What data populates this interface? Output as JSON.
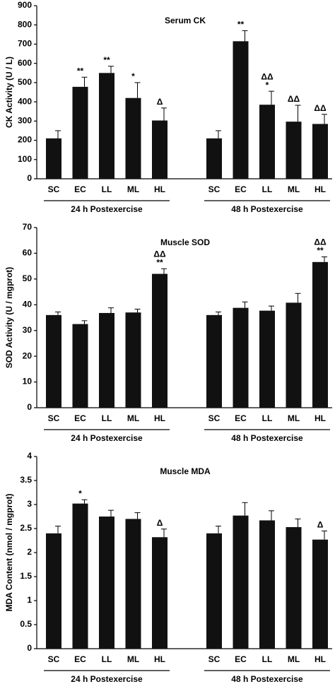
{
  "chart_data": [
    {
      "type": "bar",
      "title": "Serum CK",
      "ylabel": "CK Activity (U / L)",
      "categories": [
        "SC",
        "EC",
        "LL",
        "ML",
        "HL",
        "SC",
        "EC",
        "LL",
        "ML",
        "HL"
      ],
      "values": [
        210,
        478,
        550,
        420,
        303,
        210,
        715,
        385,
        297,
        285
      ],
      "errors": [
        40,
        50,
        35,
        80,
        65,
        40,
        55,
        70,
        85,
        50
      ],
      "annotations": [
        null,
        [
          "**"
        ],
        [
          "**"
        ],
        [
          "*"
        ],
        [
          "Δ"
        ],
        null,
        [
          "**"
        ],
        [
          "ΔΔ",
          "*"
        ],
        [
          "ΔΔ"
        ],
        [
          "ΔΔ"
        ]
      ],
      "groups": [
        "24 h Postexercise",
        "48 h Postexercise"
      ],
      "color": "#111111",
      "ylim": [
        0,
        900
      ],
      "yticks": [
        0,
        100,
        200,
        300,
        400,
        500,
        600,
        700,
        800,
        900
      ]
    },
    {
      "type": "bar",
      "title": "Muscle SOD",
      "ylabel": "SOD Activity (U / mgprot)",
      "categories": [
        "SC",
        "EC",
        "LL",
        "ML",
        "HL",
        "SC",
        "EC",
        "LL",
        "ML",
        "HL"
      ],
      "values": [
        36,
        32.5,
        36.8,
        37,
        52,
        36,
        38.8,
        37.7,
        40.8,
        56.6
      ],
      "errors": [
        1.2,
        1.3,
        2,
        1.3,
        2,
        1.2,
        2.3,
        1.8,
        3.6,
        2
      ],
      "annotations": [
        null,
        null,
        null,
        null,
        [
          "ΔΔ",
          "**"
        ],
        null,
        null,
        null,
        null,
        [
          "ΔΔ",
          "**"
        ]
      ],
      "groups": [
        "24 h Postexercise",
        "48 h Postexercise"
      ],
      "color": "#111111",
      "ylim": [
        0,
        70
      ],
      "yticks": [
        0,
        10,
        20,
        30,
        40,
        50,
        60,
        70
      ]
    },
    {
      "type": "bar",
      "title": "Muscle MDA",
      "ylabel": "MDA Content (nmol / mgprot)",
      "categories": [
        "SC",
        "EC",
        "LL",
        "ML",
        "HL",
        "SC",
        "EC",
        "LL",
        "ML",
        "HL"
      ],
      "values": [
        2.4,
        3.02,
        2.75,
        2.7,
        2.32,
        2.4,
        2.77,
        2.67,
        2.53,
        2.27
      ],
      "errors": [
        0.15,
        0.08,
        0.13,
        0.13,
        0.17,
        0.15,
        0.27,
        0.2,
        0.17,
        0.18
      ],
      "annotations": [
        null,
        [
          "*"
        ],
        null,
        null,
        [
          "Δ"
        ],
        null,
        null,
        null,
        null,
        [
          "Δ"
        ]
      ],
      "groups": [
        "24 h Postexercise",
        "48 h Postexercise"
      ],
      "color": "#111111",
      "ylim": [
        0,
        4
      ],
      "yticks": [
        0,
        0.5,
        1,
        1.5,
        2,
        2.5,
        3,
        3.5,
        4
      ]
    }
  ]
}
